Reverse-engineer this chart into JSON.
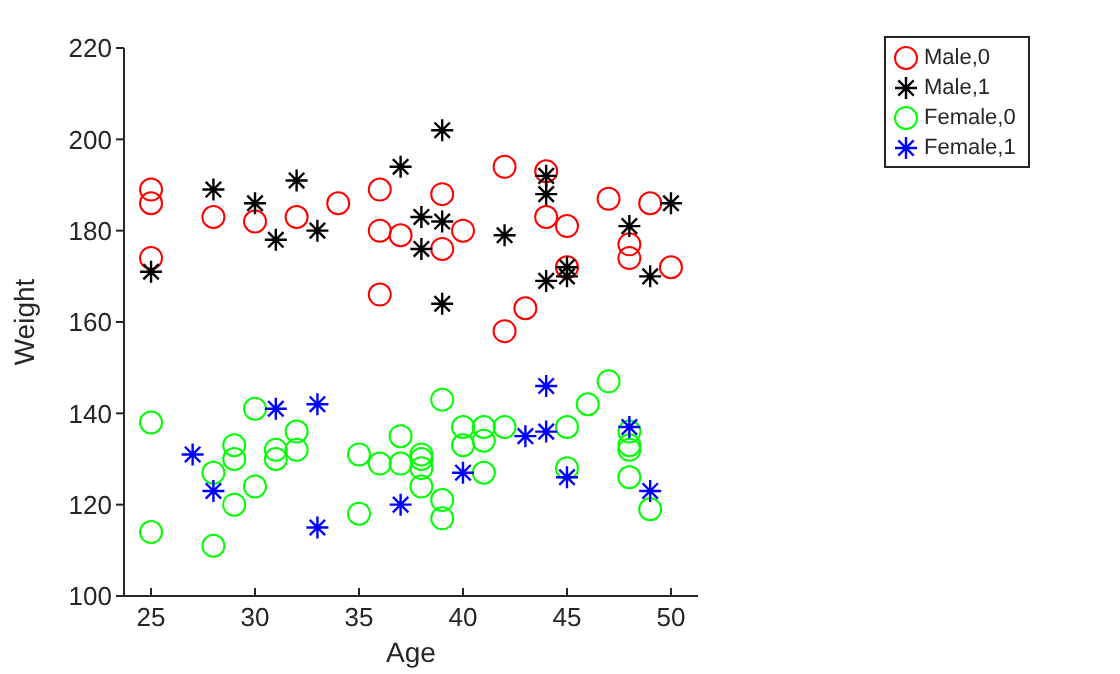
{
  "chart_data": {
    "type": "scatter",
    "xlabel": "Age",
    "ylabel": "Weight",
    "xlim": [
      23.7,
      51.3
    ],
    "xticks": [
      25,
      30,
      35,
      40,
      45,
      50
    ],
    "ylim": [
      100,
      220
    ],
    "yticks": [
      100,
      120,
      140,
      160,
      180,
      200,
      220
    ],
    "grid": false,
    "legend": "top right",
    "series": [
      {
        "name": "Male,0",
        "color": "#ff0000",
        "marker": "circle",
        "x": [
          25,
          25,
          25,
          28,
          30,
          32,
          34,
          36,
          36,
          36,
          37,
          39,
          39,
          40,
          42,
          42,
          43,
          44,
          44,
          45,
          45,
          47,
          48,
          48,
          49,
          50
        ],
        "values": [
          189,
          186,
          174,
          183,
          182,
          183,
          186,
          189,
          180,
          166,
          179,
          188,
          176,
          180,
          194,
          158,
          163,
          193,
          183,
          181,
          172,
          187,
          177,
          174,
          186,
          172
        ]
      },
      {
        "name": "Male,1",
        "color": "#000000",
        "marker": "cross",
        "x": [
          25,
          28,
          30,
          31,
          32,
          33,
          37,
          38,
          38,
          39,
          39,
          39,
          42,
          44,
          44,
          44,
          45,
          45,
          48,
          49,
          50
        ],
        "values": [
          171,
          189,
          186,
          178,
          191,
          180,
          194,
          183,
          176,
          202,
          182,
          164,
          179,
          192,
          188,
          169,
          172,
          170,
          181,
          170,
          186
        ]
      },
      {
        "name": "Female,0",
        "color": "#00ff00",
        "marker": "circle",
        "x": [
          25,
          25,
          28,
          28,
          29,
          29,
          29,
          30,
          30,
          31,
          31,
          32,
          32,
          35,
          35,
          36,
          37,
          37,
          38,
          38,
          38,
          38,
          39,
          39,
          39,
          40,
          40,
          41,
          41,
          41,
          42,
          45,
          45,
          46,
          47,
          48,
          48,
          48,
          48,
          49
        ],
        "values": [
          138,
          114,
          127,
          111,
          133,
          130,
          120,
          141,
          124,
          132,
          130,
          136,
          132,
          131,
          118,
          129,
          135,
          129,
          131,
          130,
          128,
          124,
          143,
          121,
          117,
          137,
          133,
          137,
          134,
          127,
          137,
          137,
          128,
          142,
          147,
          136,
          133,
          132,
          126,
          119
        ]
      },
      {
        "name": "Female,1",
        "color": "#0000ff",
        "marker": "cross",
        "x": [
          27,
          28,
          31,
          33,
          33,
          37,
          40,
          43,
          44,
          44,
          45,
          48,
          49
        ],
        "values": [
          131,
          123,
          141,
          142,
          115,
          120,
          127,
          135,
          146,
          136,
          126,
          137,
          123
        ]
      }
    ]
  }
}
